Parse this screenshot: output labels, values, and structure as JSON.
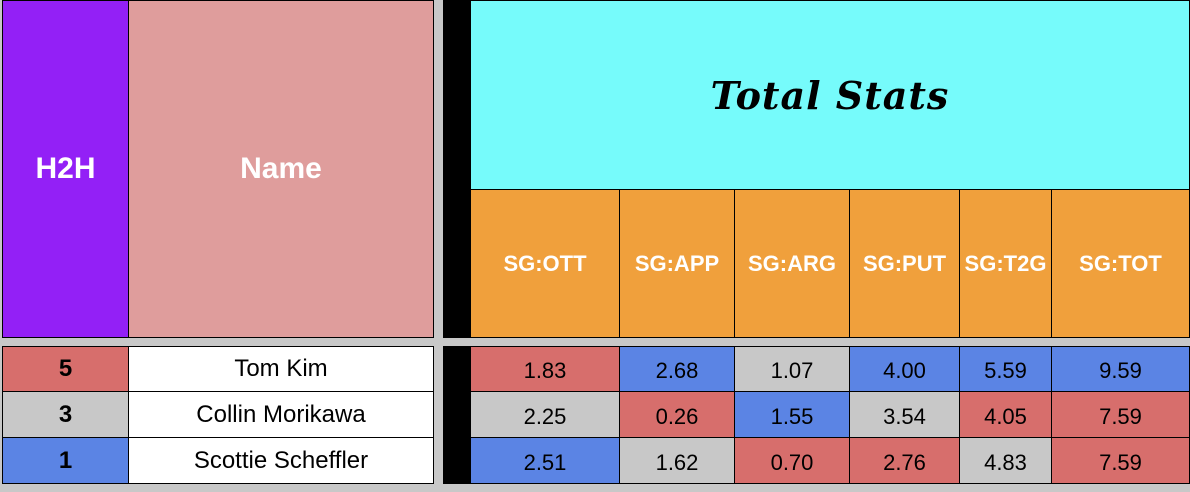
{
  "header": {
    "h2h": "H2H",
    "name": "Name",
    "group_title": "Total Stats",
    "columns": [
      "SG:OTT",
      "SG:APP",
      "SG:ARG",
      "SG:PUT",
      "SG:T2G",
      "SG:TOT"
    ]
  },
  "rows": [
    {
      "h2h": "5",
      "name": "Tom Kim",
      "values": [
        "1.83",
        "2.68",
        "1.07",
        "4.00",
        "5.59",
        "9.59"
      ]
    },
    {
      "h2h": "3",
      "name": "Collin Morikawa",
      "values": [
        "2.25",
        "0.26",
        "1.55",
        "3.54",
        "4.05",
        "7.59"
      ]
    },
    {
      "h2h": "1",
      "name": "Scottie Scheffler",
      "values": [
        "2.51",
        "1.62",
        "0.70",
        "2.76",
        "4.83",
        "7.59"
      ]
    }
  ],
  "colors": {
    "h2h_header": "#9320f6",
    "name_header": "#df9d9c",
    "title_bg": "#76fbfb",
    "column_header": "#f0a03c",
    "red": "#d76e6c",
    "blue": "#5b84e4",
    "gray": "#c8c8c8",
    "rank_colors": [
      "#d76e6c",
      "#c8c8c8",
      "#5b84e4"
    ],
    "cell_colors": [
      [
        "#d76e6c",
        "#5b84e4",
        "#c8c8c8",
        "#5b84e4",
        "#5b84e4",
        "#5b84e4"
      ],
      [
        "#c8c8c8",
        "#d76e6c",
        "#5b84e4",
        "#c8c8c8",
        "#d76e6c",
        "#d76e6c"
      ],
      [
        "#5b84e4",
        "#c8c8c8",
        "#d76e6c",
        "#d76e6c",
        "#c8c8c8",
        "#d76e6c"
      ]
    ]
  }
}
